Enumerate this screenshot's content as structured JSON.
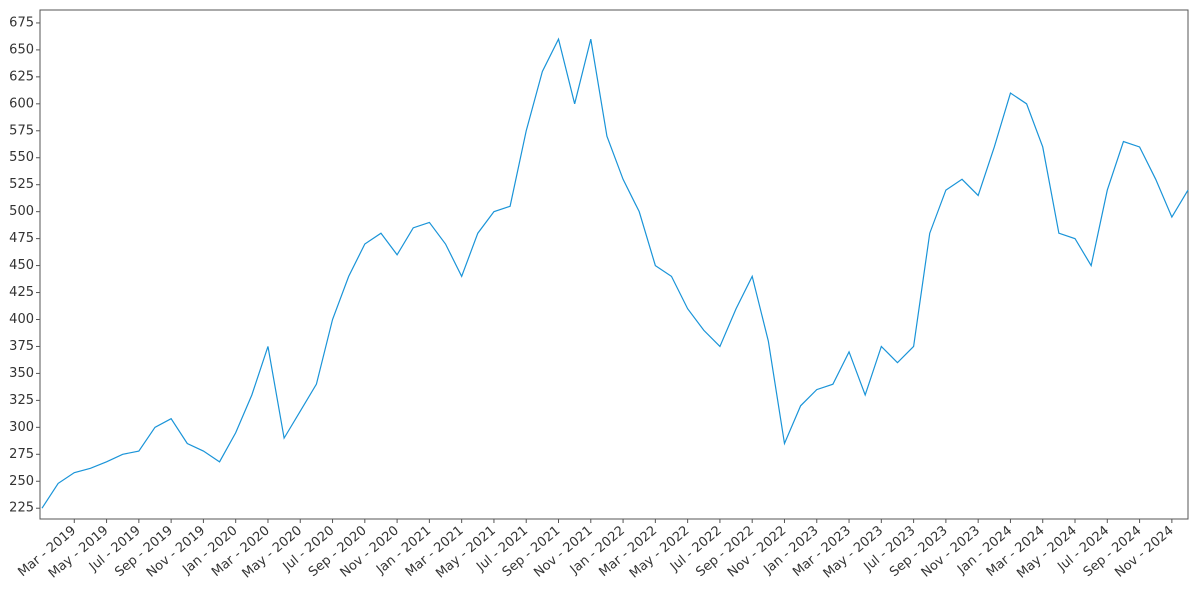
{
  "chart_data": {
    "type": "line",
    "x": [
      "2019-01",
      "2019-02",
      "2019-03",
      "2019-04",
      "2019-05",
      "2019-06",
      "2019-07",
      "2019-08",
      "2019-09",
      "2019-10",
      "2019-11",
      "2019-12",
      "2020-01",
      "2020-02",
      "2020-03",
      "2020-04",
      "2020-05",
      "2020-06",
      "2020-07",
      "2020-08",
      "2020-09",
      "2020-10",
      "2020-11",
      "2020-12",
      "2021-01",
      "2021-02",
      "2021-03",
      "2021-04",
      "2021-05",
      "2021-06",
      "2021-07",
      "2021-08",
      "2021-09",
      "2021-10",
      "2021-11",
      "2021-12",
      "2022-01",
      "2022-02",
      "2022-03",
      "2022-04",
      "2022-05",
      "2022-06",
      "2022-07",
      "2022-08",
      "2022-09",
      "2022-10",
      "2022-11",
      "2022-12",
      "2023-01",
      "2023-02",
      "2023-03",
      "2023-04",
      "2023-05",
      "2023-06",
      "2023-07",
      "2023-08",
      "2023-09",
      "2023-10",
      "2023-11",
      "2023-12",
      "2024-01",
      "2024-02",
      "2024-03",
      "2024-04",
      "2024-05",
      "2024-06",
      "2024-07",
      "2024-08",
      "2024-09",
      "2024-10",
      "2024-11",
      "2024-12"
    ],
    "series": [
      {
        "color": "#1a94d8",
        "values": [
          225,
          248,
          258,
          262,
          268,
          275,
          278,
          300,
          308,
          285,
          278,
          268,
          295,
          330,
          375,
          290,
          315,
          340,
          400,
          440,
          470,
          480,
          460,
          485,
          490,
          470,
          440,
          480,
          500,
          505,
          575,
          630,
          660,
          600,
          660,
          570,
          530,
          500,
          450,
          440,
          410,
          390,
          375,
          410,
          440,
          380,
          285,
          320,
          335,
          340,
          370,
          330,
          375,
          360,
          375,
          480,
          520,
          530,
          515,
          560,
          610,
          600,
          560,
          480,
          475,
          450,
          520,
          565,
          560,
          530,
          495,
          520
        ]
      }
    ],
    "xlim": [
      "2019-01",
      "2024-12"
    ],
    "ylim": [
      215,
      687
    ],
    "yticks": [
      225,
      250,
      275,
      300,
      325,
      350,
      375,
      400,
      425,
      450,
      475,
      500,
      525,
      550,
      575,
      600,
      625,
      650,
      675
    ],
    "xticks": [
      {
        "value": "2019-03",
        "label": "Mar - 2019"
      },
      {
        "value": "2019-05",
        "label": "May - 2019"
      },
      {
        "value": "2019-07",
        "label": "Jul - 2019"
      },
      {
        "value": "2019-09",
        "label": "Sep - 2019"
      },
      {
        "value": "2019-11",
        "label": "Nov - 2019"
      },
      {
        "value": "2020-01",
        "label": "Jan - 2020"
      },
      {
        "value": "2020-03",
        "label": "Mar - 2020"
      },
      {
        "value": "2020-05",
        "label": "May - 2020"
      },
      {
        "value": "2020-07",
        "label": "Jul - 2020"
      },
      {
        "value": "2020-09",
        "label": "Sep - 2020"
      },
      {
        "value": "2020-11",
        "label": "Nov - 2020"
      },
      {
        "value": "2021-01",
        "label": "Jan - 2021"
      },
      {
        "value": "2021-03",
        "label": "Mar - 2021"
      },
      {
        "value": "2021-05",
        "label": "May - 2021"
      },
      {
        "value": "2021-07",
        "label": "Jul - 2021"
      },
      {
        "value": "2021-09",
        "label": "Sep - 2021"
      },
      {
        "value": "2021-11",
        "label": "Nov - 2021"
      },
      {
        "value": "2022-01",
        "label": "Jan - 2022"
      },
      {
        "value": "2022-03",
        "label": "Mar - 2022"
      },
      {
        "value": "2022-05",
        "label": "May - 2022"
      },
      {
        "value": "2022-07",
        "label": "Jul - 2022"
      },
      {
        "value": "2022-09",
        "label": "Sep - 2022"
      },
      {
        "value": "2022-11",
        "label": "Nov - 2022"
      },
      {
        "value": "2023-01",
        "label": "Jan - 2023"
      },
      {
        "value": "2023-03",
        "label": "Mar - 2023"
      },
      {
        "value": "2023-05",
        "label": "May - 2023"
      },
      {
        "value": "2023-07",
        "label": "Jul - 2023"
      },
      {
        "value": "2023-09",
        "label": "Sep - 2023"
      },
      {
        "value": "2023-11",
        "label": "Nov - 2023"
      },
      {
        "value": "2024-01",
        "label": "Jan - 2024"
      },
      {
        "value": "2024-03",
        "label": "Mar - 2024"
      },
      {
        "value": "2024-05",
        "label": "May - 2024"
      },
      {
        "value": "2024-07",
        "label": "Jul - 2024"
      },
      {
        "value": "2024-09",
        "label": "Sep - 2024"
      },
      {
        "value": "2024-11",
        "label": "Nov - 2024"
      }
    ]
  }
}
